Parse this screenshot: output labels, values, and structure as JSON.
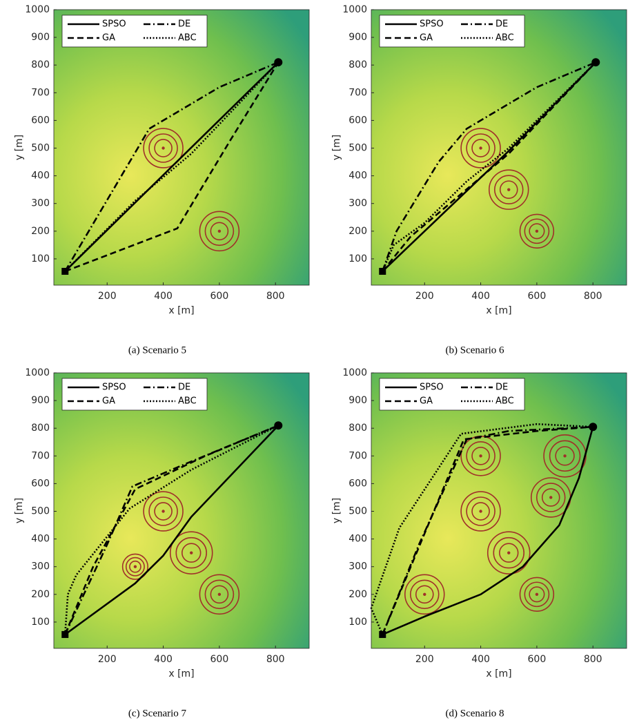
{
  "chart_data": [
    {
      "type": "line",
      "caption": "(a) Scenario 5",
      "xlabel": "x [m]",
      "ylabel": "y [m]",
      "xlim": [
        10,
        920
      ],
      "ylim": [
        5,
        1000
      ],
      "xticks": [
        200,
        400,
        600,
        800
      ],
      "yticks": [
        100,
        200,
        300,
        400,
        500,
        600,
        700,
        800,
        900,
        1000
      ],
      "legend_loc": "upper left",
      "series": [
        {
          "name": "SPSO",
          "color": "#000000",
          "dash": "solid",
          "x": [
            50,
            810
          ],
          "values": [
            55,
            810
          ]
        },
        {
          "name": "DE",
          "color": "#000000",
          "dash": "dashdot",
          "x": [
            50,
            350,
            600,
            810
          ],
          "values": [
            55,
            570,
            720,
            810
          ]
        },
        {
          "name": "GA",
          "color": "#000000",
          "dash": "dashed",
          "x": [
            50,
            450,
            640,
            810
          ],
          "values": [
            55,
            210,
            530,
            810
          ]
        },
        {
          "name": "ABC",
          "color": "#000000",
          "dash": "dotted",
          "x": [
            50,
            300,
            500,
            810
          ],
          "values": [
            55,
            310,
            480,
            810
          ]
        }
      ],
      "threats": [
        {
          "x": 400,
          "y": 500,
          "r": 70
        },
        {
          "x": 600,
          "y": 200,
          "r": 70
        }
      ]
    },
    {
      "type": "line",
      "caption": "(b) Scenario 6",
      "xlabel": "x [m]",
      "ylabel": "y [m]",
      "xlim": [
        10,
        920
      ],
      "ylim": [
        5,
        1000
      ],
      "xticks": [
        200,
        400,
        600,
        800
      ],
      "yticks": [
        100,
        200,
        300,
        400,
        500,
        600,
        700,
        800,
        900,
        1000
      ],
      "legend_loc": "upper left",
      "series": [
        {
          "name": "SPSO",
          "color": "#000000",
          "dash": "solid",
          "x": [
            50,
            200,
            500,
            810
          ],
          "values": [
            55,
            200,
            490,
            810
          ]
        },
        {
          "name": "DE",
          "color": "#000000",
          "dash": "dashdot",
          "x": [
            50,
            100,
            250,
            350,
            600,
            810
          ],
          "values": [
            55,
            200,
            450,
            570,
            720,
            810
          ]
        },
        {
          "name": "GA",
          "color": "#000000",
          "dash": "dashed",
          "x": [
            50,
            150,
            500,
            810
          ],
          "values": [
            55,
            180,
            480,
            810
          ]
        },
        {
          "name": "ABC",
          "color": "#000000",
          "dash": "dotted",
          "x": [
            50,
            90,
            200,
            350,
            500,
            810
          ],
          "values": [
            55,
            150,
            230,
            380,
            500,
            810
          ]
        }
      ],
      "threats": [
        {
          "x": 400,
          "y": 500,
          "r": 70
        },
        {
          "x": 500,
          "y": 350,
          "r": 70
        },
        {
          "x": 600,
          "y": 200,
          "r": 60
        }
      ]
    },
    {
      "type": "line",
      "caption": "(c) Scenario 7",
      "xlabel": "x [m]",
      "ylabel": "y [m]",
      "xlim": [
        10,
        920
      ],
      "ylim": [
        5,
        1000
      ],
      "xticks": [
        200,
        400,
        600,
        800
      ],
      "yticks": [
        100,
        200,
        300,
        400,
        500,
        600,
        700,
        800,
        900,
        1000
      ],
      "legend_loc": "upper left",
      "series": [
        {
          "name": "SPSO",
          "color": "#000000",
          "dash": "solid",
          "x": [
            50,
            300,
            400,
            500,
            810
          ],
          "values": [
            55,
            240,
            340,
            480,
            810
          ]
        },
        {
          "name": "DE",
          "color": "#000000",
          "dash": "dashdot",
          "x": [
            50,
            200,
            290,
            500,
            810
          ],
          "values": [
            55,
            380,
            590,
            680,
            810
          ]
        },
        {
          "name": "GA",
          "color": "#000000",
          "dash": "dashed",
          "x": [
            50,
            150,
            300,
            550,
            810
          ],
          "values": [
            55,
            300,
            580,
            700,
            810
          ]
        },
        {
          "name": "ABC",
          "color": "#000000",
          "dash": "dotted",
          "x": [
            50,
            60,
            90,
            280,
            500,
            810
          ],
          "values": [
            55,
            200,
            270,
            510,
            650,
            810
          ]
        }
      ],
      "threats": [
        {
          "x": 400,
          "y": 500,
          "r": 70
        },
        {
          "x": 500,
          "y": 350,
          "r": 75
        },
        {
          "x": 600,
          "y": 200,
          "r": 70
        },
        {
          "x": 300,
          "y": 300,
          "r": 45
        }
      ]
    },
    {
      "type": "line",
      "caption": "(d) Scenario 8",
      "xlabel": "x [m]",
      "ylabel": "y [m]",
      "xlim": [
        10,
        920
      ],
      "ylim": [
        5,
        1000
      ],
      "xticks": [
        200,
        400,
        600,
        800
      ],
      "yticks": [
        100,
        200,
        300,
        400,
        500,
        600,
        700,
        800,
        900,
        1000
      ],
      "legend_loc": "upper left",
      "series": [
        {
          "name": "SPSO",
          "color": "#000000",
          "dash": "solid",
          "x": [
            50,
            200,
            400,
            550,
            680,
            750,
            800
          ],
          "values": [
            55,
            120,
            200,
            300,
            450,
            620,
            805
          ]
        },
        {
          "name": "DE",
          "color": "#000000",
          "dash": "dashdot",
          "x": [
            50,
            180,
            350,
            500,
            800
          ],
          "values": [
            55,
            380,
            760,
            790,
            805
          ]
        },
        {
          "name": "GA",
          "color": "#000000",
          "dash": "dashed",
          "x": [
            50,
            200,
            340,
            600,
            800
          ],
          "values": [
            55,
            420,
            760,
            790,
            805
          ]
        },
        {
          "name": "ABC",
          "color": "#000000",
          "dash": "dotted",
          "x": [
            50,
            10,
            110,
            330,
            600,
            800
          ],
          "values": [
            55,
            150,
            440,
            780,
            815,
            805
          ]
        }
      ],
      "threats": [
        {
          "x": 400,
          "y": 700,
          "r": 70
        },
        {
          "x": 700,
          "y": 700,
          "r": 75
        },
        {
          "x": 650,
          "y": 550,
          "r": 70
        },
        {
          "x": 400,
          "y": 500,
          "r": 70
        },
        {
          "x": 500,
          "y": 350,
          "r": 75
        },
        {
          "x": 200,
          "y": 200,
          "r": 70
        },
        {
          "x": 600,
          "y": 200,
          "r": 60
        }
      ]
    }
  ]
}
